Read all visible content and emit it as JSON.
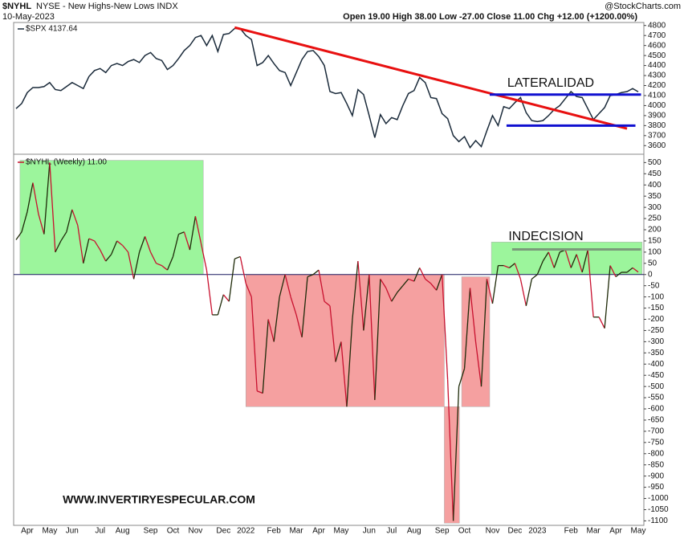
{
  "chart_data": {
    "type": "line",
    "symbol": "$NYHL",
    "description": "NYSE - New Highs-New Lows INDX",
    "date": "10-May-2023",
    "source": "@StockCharts.com",
    "quote": "Open 19.00 High 38.00 Low -27.00 Close 11.00 Chg +12.00 (+1200.00%)",
    "annotations": [
      "LATERALIDAD",
      "INDECISION",
      "WWW.INVERTIRYESPECULAR.COM"
    ],
    "categories": [
      null,
      null,
      "Apr",
      null,
      null,
      null,
      "May",
      null,
      null,
      null,
      "Jun",
      null,
      null,
      null,
      null,
      "Jul",
      null,
      null,
      null,
      "Aug",
      null,
      null,
      null,
      null,
      "Sep",
      null,
      null,
      null,
      "Oct",
      null,
      null,
      null,
      "Nov",
      null,
      null,
      null,
      null,
      "Dec",
      null,
      null,
      null,
      "2022",
      null,
      null,
      null,
      null,
      "Feb",
      null,
      null,
      null,
      "Mar",
      null,
      null,
      null,
      "Apr",
      null,
      null,
      null,
      "May",
      null,
      null,
      null,
      null,
      "Jun",
      null,
      null,
      null,
      "Jul",
      null,
      null,
      null,
      "Aug",
      null,
      null,
      null,
      null,
      "Sep",
      null,
      null,
      null,
      "Oct",
      null,
      null,
      null,
      null,
      "Nov",
      null,
      null,
      null,
      "Dec",
      null,
      null,
      null,
      "2023",
      null,
      null,
      null,
      null,
      null,
      "Feb",
      null,
      null,
      null,
      "Mar",
      null,
      null,
      null,
      "Apr",
      null,
      null,
      null,
      "May"
    ],
    "panels": [
      {
        "series": [
          {
            "name": "$SPX 4137.64",
            "color": "#1a2a3a",
            "values": [
              3970,
              4020,
              4130,
              4180,
              4180,
              4190,
              4230,
              4160,
              4150,
              4190,
              4230,
              4200,
              4170,
              4290,
              4350,
              4370,
              4330,
              4400,
              4420,
              4400,
              4440,
              4460,
              4430,
              4500,
              4530,
              4470,
              4450,
              4360,
              4400,
              4470,
              4550,
              4600,
              4680,
              4700,
              4600,
              4700,
              4540,
              4710,
              4720,
              4770,
              4770,
              4700,
              4660,
              4400,
              4430,
              4500,
              4420,
              4350,
              4330,
              4200,
              4330,
              4460,
              4540,
              4550,
              4490,
              4400,
              4140,
              4120,
              4130,
              4020,
              3900,
              4160,
              4110,
              3900,
              3680,
              3910,
              3820,
              3880,
              3860,
              4000,
              4120,
              4150,
              4280,
              4230,
              4080,
              4070,
              3920,
              3870,
              3700,
              3640,
              3690,
              3580,
              3650,
              3590,
              3750,
              3900,
              3800,
              3990,
              3970,
              4030,
              4080,
              3930,
              3850,
              3840,
              3850,
              3900,
              3960,
              4000,
              4070,
              4140,
              4090,
              4080,
              3970,
              3860,
              3920,
              3980,
              4100,
              4110,
              4130,
              4140,
              4170,
              4137.64
            ]
          }
        ],
        "ylim": [
          3530,
          4830
        ],
        "yticks": [
          3600,
          3700,
          3800,
          3900,
          4000,
          4100,
          4200,
          4300,
          4400,
          4500,
          4600,
          4700,
          4800
        ],
        "trendlines": [
          {
            "color": "#e81010",
            "start": [
              39,
              4780
            ],
            "end": [
              109,
              3770
            ]
          },
          {
            "color": "#1010d0",
            "start": [
              84.5,
              4110
            ],
            "end": [
              111.5,
              4110
            ]
          },
          {
            "color": "#1010d0",
            "start": [
              87.5,
              3800
            ],
            "end": [
              110.5,
              3800
            ]
          }
        ]
      },
      {
        "series": [
          {
            "name": "$NYHL (Weekly) 11.00",
            "up_color": "#1e2a08",
            "down_color": "#c8102e",
            "values": [
              155,
              190,
              280,
              410,
              270,
              180,
              500,
              100,
              150,
              190,
              290,
              220,
              50,
              160,
              150,
              110,
              60,
              90,
              150,
              130,
              100,
              -20,
              100,
              170,
              100,
              50,
              40,
              20,
              80,
              180,
              190,
              110,
              260,
              140,
              20,
              -180,
              -180,
              -90,
              -120,
              70,
              80,
              -40,
              -100,
              -520,
              -530,
              -200,
              -300,
              -100,
              0,
              -100,
              -180,
              -280,
              -10,
              0,
              20,
              -120,
              -140,
              -390,
              -300,
              -590,
              -200,
              60,
              -250,
              0,
              -560,
              -20,
              -60,
              -120,
              -80,
              -50,
              -20,
              -30,
              30,
              -20,
              -40,
              -70,
              0,
              -470,
              -1100,
              -500,
              -420,
              -60,
              -300,
              -500,
              -20,
              -130,
              40,
              40,
              30,
              50,
              -20,
              -140,
              -20,
              0,
              60,
              100,
              30,
              100,
              110,
              30,
              90,
              10,
              110,
              -190,
              -190,
              -240,
              40,
              -10,
              10,
              10,
              30,
              11
            ]
          }
        ],
        "ylim": [
          -1120,
          530
        ],
        "yticks": [
          -1100,
          -1050,
          -1000,
          -950,
          -900,
          -850,
          -800,
          -750,
          -700,
          -650,
          -600,
          -550,
          -500,
          -450,
          -400,
          -350,
          -300,
          -250,
          -200,
          -150,
          -100,
          -50,
          0,
          50,
          100,
          150,
          200,
          250,
          300,
          350,
          400,
          450,
          500
        ],
        "zero_line": "#1a1a60",
        "zones": [
          {
            "color": "#9cf59c",
            "start": 0.7,
            "end": 33.4,
            "low": 0,
            "high": 510
          },
          {
            "color": "#f5a0a0",
            "start": 41,
            "end": 76.4,
            "low": -590,
            "high": 0
          },
          {
            "color": "#f5a0a0",
            "start": 76.4,
            "end": 79.1,
            "low": -1110,
            "high": -590
          },
          {
            "color": "#f5a0a0",
            "start": 79.5,
            "end": 84.5,
            "low": -590,
            "high": -10
          },
          {
            "color": "#9cf59c",
            "start": 84.8,
            "end": 111.7,
            "low": 0,
            "high": 145
          }
        ],
        "trendlines": [
          {
            "color": "#7a9a7a",
            "start": [
              88.5,
              112
            ],
            "end": [
              111.5,
              112
            ]
          }
        ]
      }
    ]
  }
}
